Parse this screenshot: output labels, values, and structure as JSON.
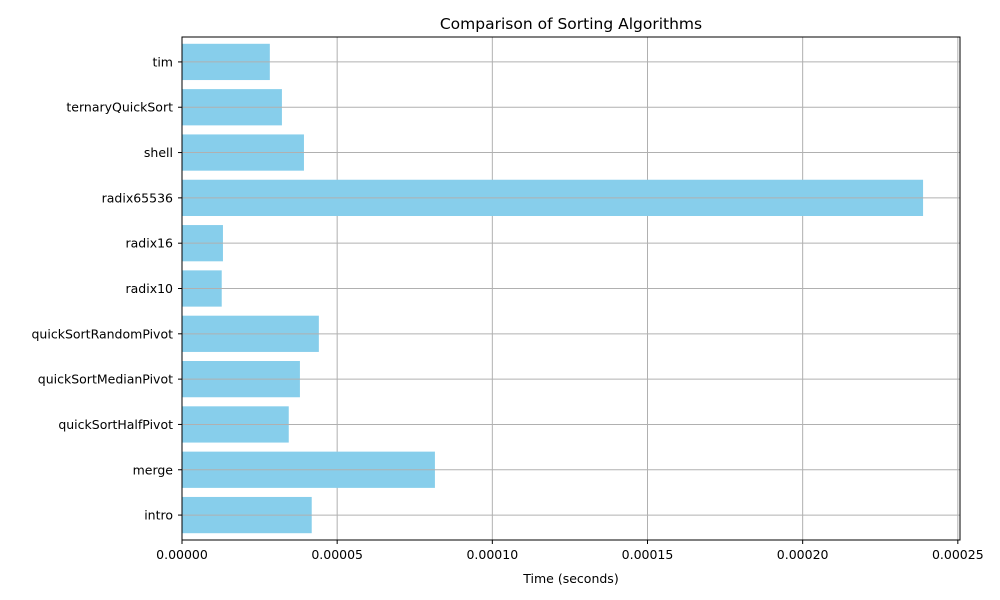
{
  "chart_data": {
    "type": "bar",
    "orientation": "horizontal",
    "title": "Comparison of Sorting Algorithms",
    "xlabel": "Time (seconds)",
    "ylabel": "",
    "categories": [
      "intro",
      "merge",
      "quickSortHalfPivot",
      "quickSortMedianPivot",
      "quickSortRandomPivot",
      "radix10",
      "radix16",
      "radix65536",
      "shell",
      "ternaryQuickSort",
      "tim"
    ],
    "values": [
      4.18e-05,
      8.15e-05,
      3.44e-05,
      3.8e-05,
      4.41e-05,
      1.28e-05,
      1.32e-05,
      0.0002388,
      3.93e-05,
      3.22e-05,
      2.83e-05
    ],
    "xticks": [
      "0.00000",
      "0.00005",
      "0.00010",
      "0.00015",
      "0.00020",
      "0.00025"
    ],
    "xlim": [
      0,
      0.0002507
    ],
    "grid": true,
    "bar_color": "#87ceeb",
    "grid_color": "#b0b0b0"
  }
}
